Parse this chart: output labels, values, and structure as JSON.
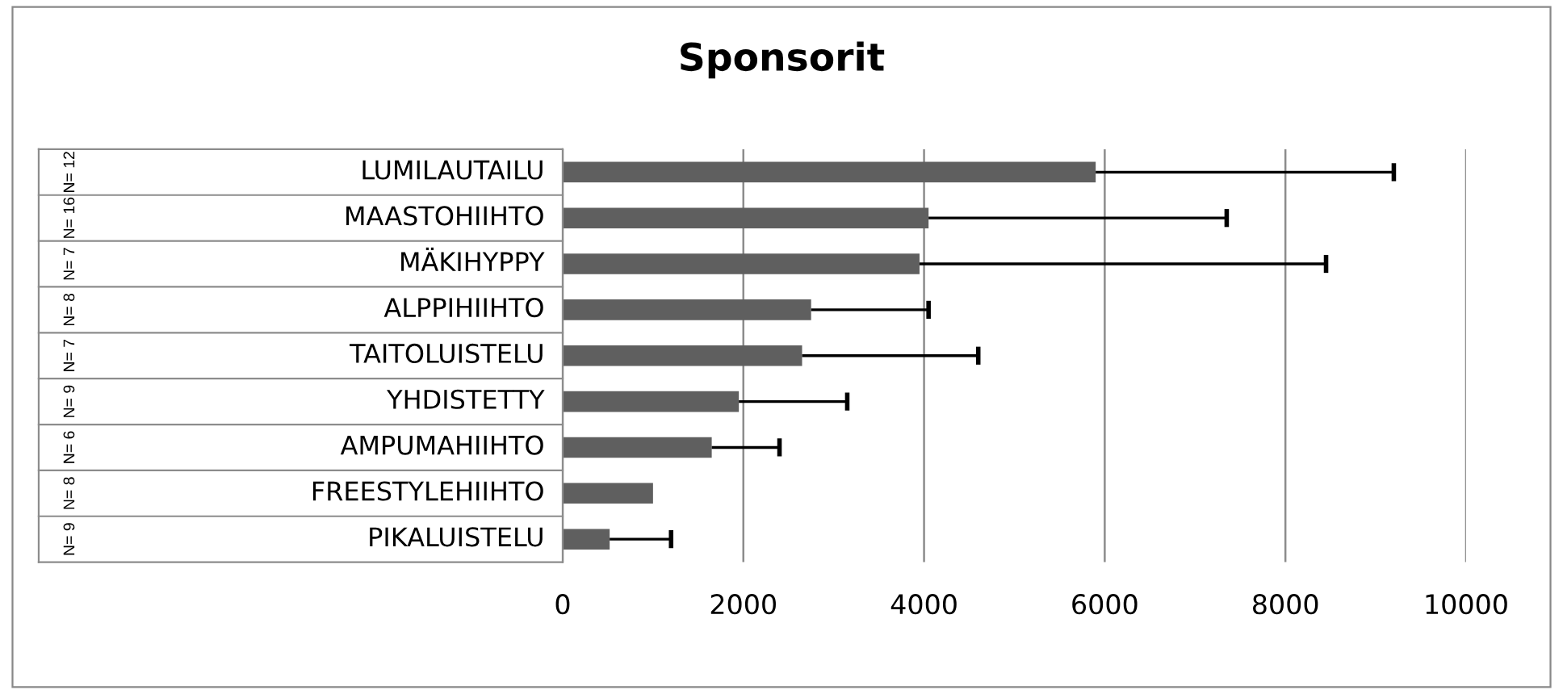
{
  "chart_data": {
    "type": "bar",
    "orientation": "horizontal",
    "title": "Sponsorit",
    "categories": [
      "LUMILAUTAILU",
      "MAASTOHIIHTO",
      "MÄKIHYPPY",
      "ALPPIHIIHTO",
      "TAITOLUISTELU",
      "YHDISTETTY",
      "AMPUMAHIIHTO",
      "FREESTYLEHIIHTO",
      "PIKALUISTELU"
    ],
    "values": [
      5900,
      4050,
      3950,
      2750,
      2650,
      1950,
      1650,
      1000,
      520
    ],
    "errors": [
      [
        5900,
        9200
      ],
      [
        4050,
        7350
      ],
      [
        3950,
        8450
      ],
      [
        2750,
        4050
      ],
      [
        2650,
        4600
      ],
      [
        1950,
        3150
      ],
      [
        1650,
        2400
      ],
      null,
      [
        520,
        1200
      ]
    ],
    "color": "#5f5f5f",
    "annotations": [
      "N= 12",
      "N= 16",
      "N= 7",
      "N= 8",
      "N= 7",
      "N= 9",
      "N= 6",
      "N= 8",
      "N= 9"
    ],
    "xlim": [
      0,
      10000
    ],
    "xticks": [
      0,
      2000,
      4000,
      6000,
      8000,
      10000
    ],
    "grid": "x"
  }
}
